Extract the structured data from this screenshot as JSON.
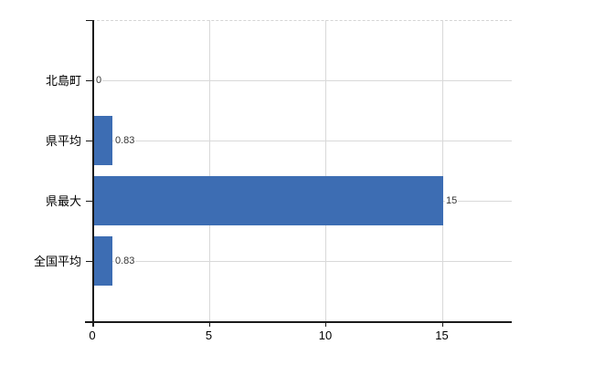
{
  "chart_data": {
    "type": "bar",
    "orientation": "horizontal",
    "title": "",
    "xlabel": "",
    "ylabel": "",
    "categories": [
      "北島町",
      "県平均",
      "県最大",
      "全国平均"
    ],
    "values": [
      0,
      0.83,
      15,
      0.83
    ],
    "value_labels": [
      "0",
      "0.83",
      "15",
      "0.83"
    ],
    "xlim": [
      0,
      18
    ],
    "xticks": [
      0,
      5,
      10,
      15
    ],
    "xtick_labels": [
      "0",
      "5",
      "10",
      "15"
    ],
    "grid": true,
    "legend": false,
    "colors": {
      "bar": "#3d6db3",
      "grid": "#d9d9d9",
      "axis": "#1a1a1a",
      "category_text": "#000000",
      "value_text": "#333333",
      "tick_text": "#000000",
      "background": "#ffffff"
    }
  }
}
